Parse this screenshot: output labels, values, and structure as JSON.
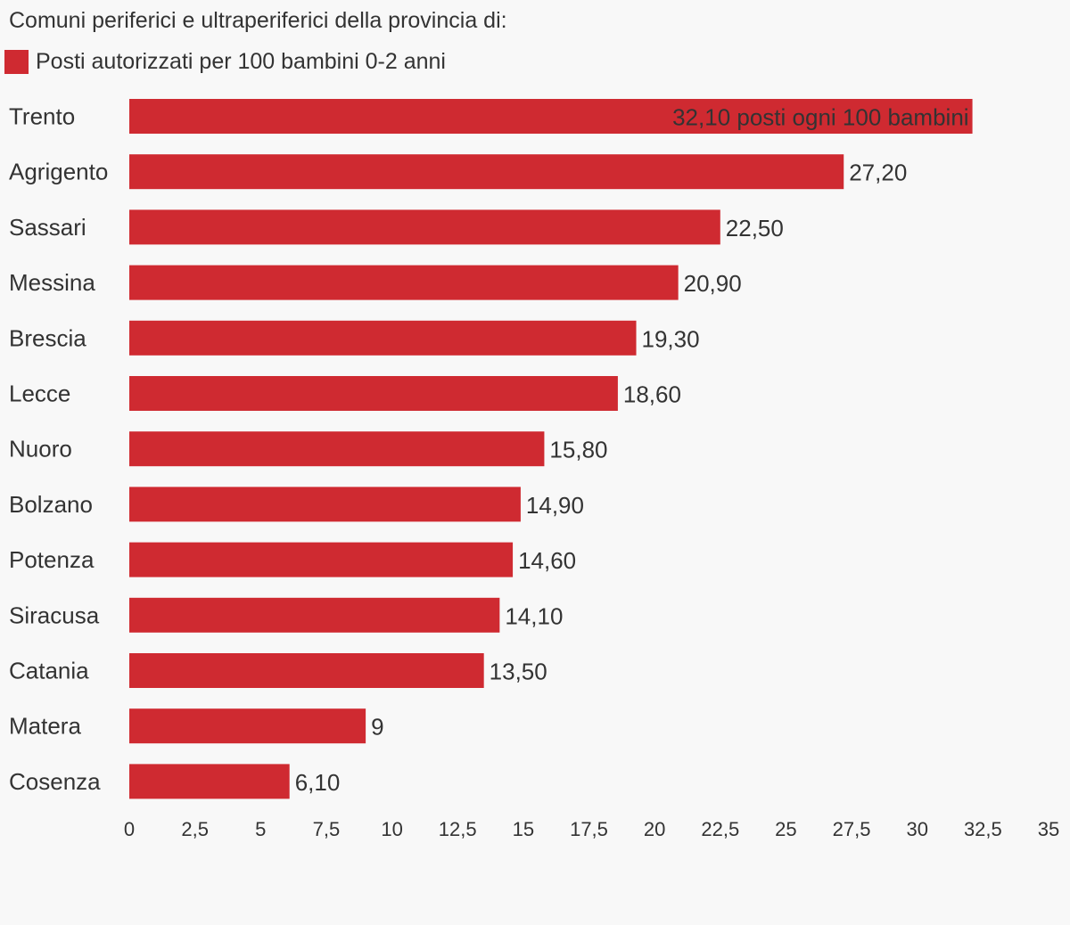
{
  "title": "Comuni periferici e ultraperiferici della provincia di:",
  "colors": {
    "bar": "#cf2a31",
    "text": "#333333",
    "background": "#f8f8f8"
  },
  "chart_data": {
    "type": "bar",
    "orientation": "horizontal",
    "categories": [
      "Trento",
      "Agrigento",
      "Sassari",
      "Messina",
      "Brescia",
      "Lecce",
      "Nuoro",
      "Bolzano",
      "Potenza",
      "Siracusa",
      "Catania",
      "Matera",
      "Cosenza"
    ],
    "series": [
      {
        "name": "Posti autorizzati per 100 bambini 0-2 anni",
        "values": [
          32.1,
          27.2,
          22.5,
          20.9,
          19.3,
          18.6,
          15.8,
          14.9,
          14.6,
          14.1,
          13.5,
          9,
          6.1
        ]
      }
    ],
    "data_labels": [
      "32,10 posti ogni 100 bambini",
      "27,20",
      "22,50",
      "20,90",
      "19,30",
      "18,60",
      "15,80",
      "14,90",
      "14,60",
      "14,10",
      "13,50",
      "9",
      "6,10"
    ],
    "xlim": [
      0,
      35
    ],
    "x_ticks": [
      0,
      2.5,
      5,
      7.5,
      10,
      12.5,
      15,
      17.5,
      20,
      22.5,
      25,
      27.5,
      30,
      32.5,
      35
    ],
    "x_tick_labels": [
      "0",
      "2,5",
      "5",
      "7,5",
      "10",
      "12,5",
      "15",
      "17,5",
      "20",
      "22,5",
      "25",
      "27,5",
      "30",
      "32,5",
      "35"
    ],
    "grid": false,
    "legend_position": "top-left"
  }
}
